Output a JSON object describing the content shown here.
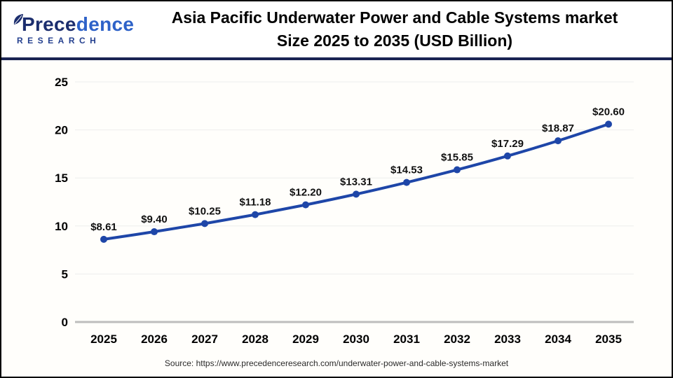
{
  "logo": {
    "brand_a": "Prece",
    "brand_b": "dence",
    "sub": "RESEARCH"
  },
  "header": {
    "title_line1": "Asia Pacific Underwater Power and Cable Systems market",
    "title_line2": "Size 2025 to 2035 (USD Billion)"
  },
  "footer": {
    "source": "Source: https://www.precedenceresearch.com/underwater-power-and-cable-systems-market"
  },
  "colors": {
    "line": "#1e46a8",
    "marker": "#1e46a8",
    "grid": "#ededed",
    "zero_axis": "#bdbdbd",
    "axis_text": "#000000",
    "data_label": "#111111",
    "divider": "#1a2353"
  },
  "chart_data": {
    "type": "line",
    "title": "Asia Pacific Underwater Power and Cable Systems market Size 2025 to 2035 (USD Billion)",
    "categories": [
      "2025",
      "2026",
      "2027",
      "2028",
      "2029",
      "2030",
      "2031",
      "2032",
      "2033",
      "2034",
      "2035"
    ],
    "values": [
      8.61,
      9.4,
      10.25,
      11.18,
      12.2,
      13.31,
      14.53,
      15.85,
      17.29,
      18.87,
      20.6
    ],
    "value_labels": [
      "$8.61",
      "$9.40",
      "$10.25",
      "$11.18",
      "$12.20",
      "$13.31",
      "$14.53",
      "$15.85",
      "$17.29",
      "$18.87",
      "$20.60"
    ],
    "xlabel": "",
    "ylabel": "",
    "ylim": [
      0,
      25
    ],
    "yticks": [
      0,
      5,
      10,
      15,
      20,
      25
    ],
    "grid": true,
    "legend": false,
    "units": "USD Billion"
  }
}
